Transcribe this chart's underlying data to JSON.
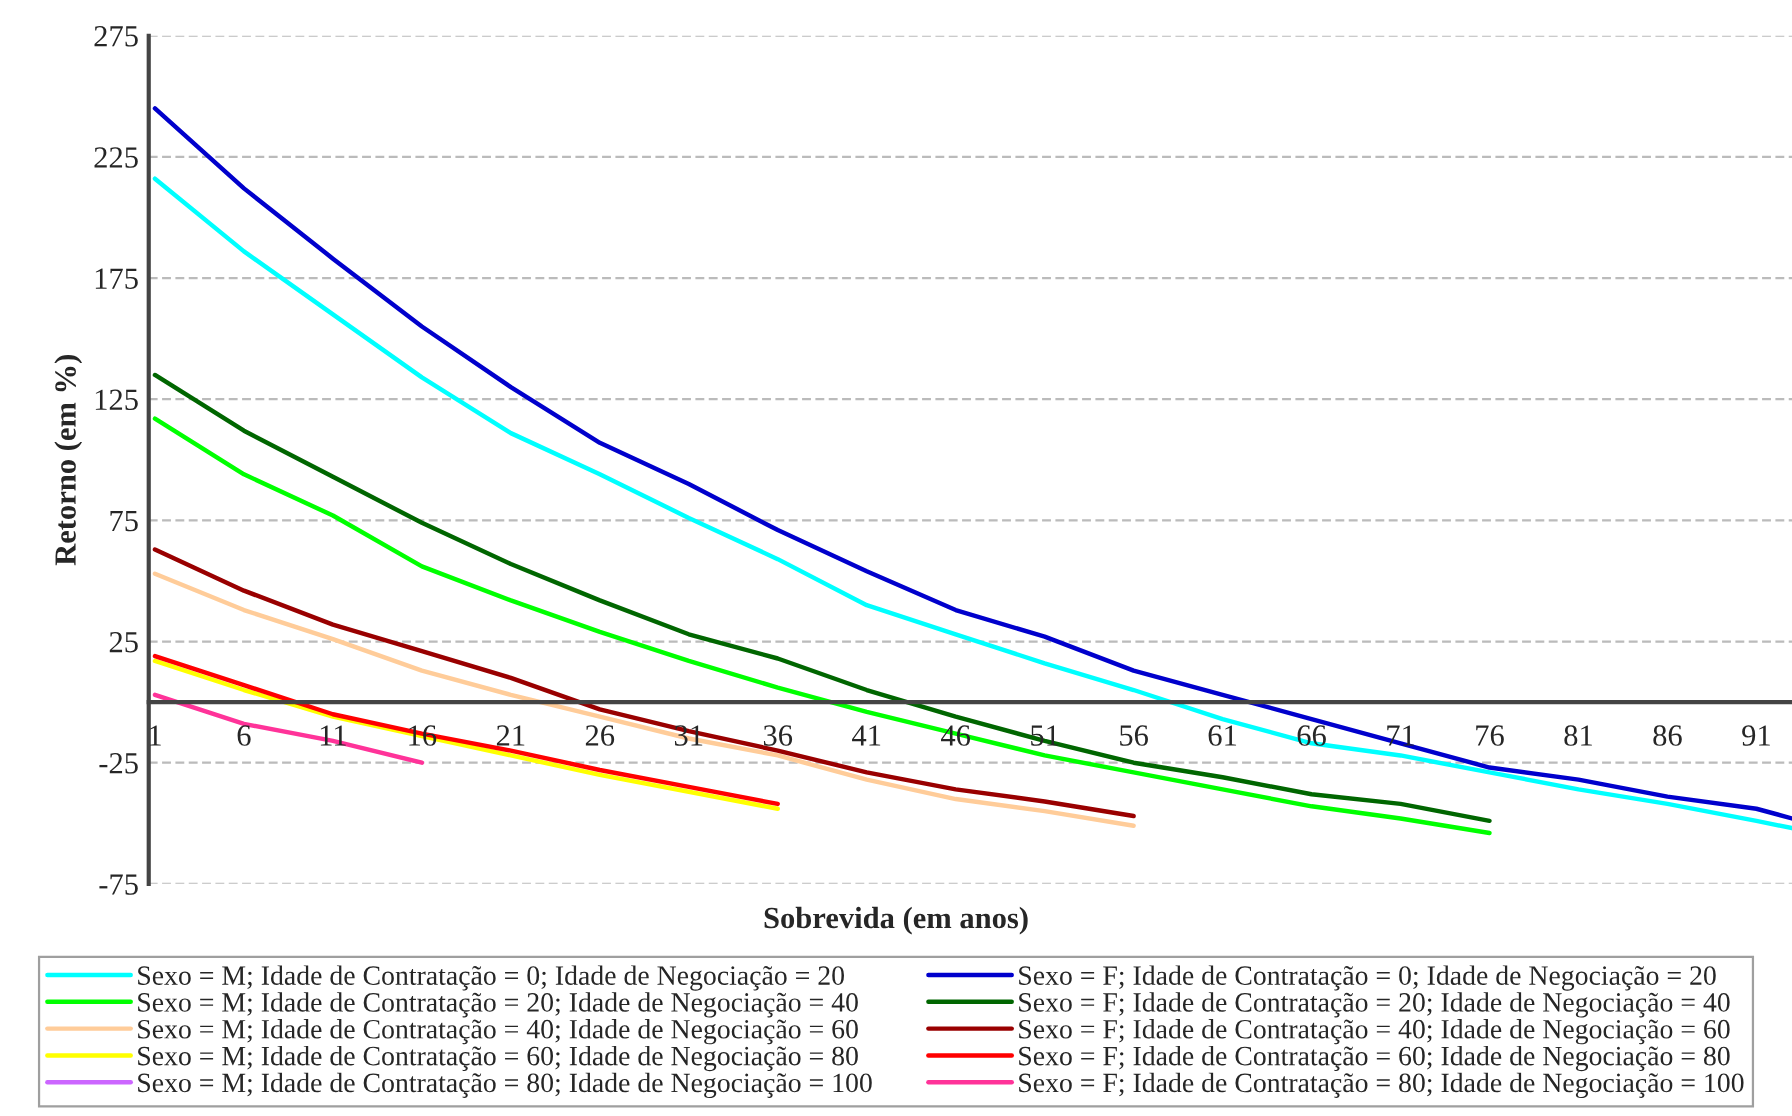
{
  "chart_data": {
    "type": "line",
    "xlabel": "Sobrevida (em anos)",
    "ylabel": "Retorno (em %)",
    "ylim": [
      -75,
      275
    ],
    "yticks": [
      -75,
      -25,
      25,
      75,
      125,
      175,
      225,
      275
    ],
    "xlim": [
      0.65,
      93.0
    ],
    "xticks": [
      1,
      6,
      11,
      16,
      21,
      26,
      31,
      36,
      41,
      46,
      51,
      56,
      61,
      66,
      71,
      76,
      81,
      86,
      91
    ],
    "grid": "y",
    "legend": "bottom",
    "marker": "none",
    "line_style": "solid",
    "series": [
      {
        "name": "Sexo = M; Idade de Contratação = 0; Idade de Negociação = 20",
        "color": "#00ffff",
        "x": [
          1,
          6,
          11,
          16,
          21,
          26,
          31,
          36,
          41,
          46,
          51,
          56,
          61,
          66,
          71,
          76,
          81,
          86,
          91,
          93
        ],
        "values": [
          216,
          186,
          160,
          134,
          111,
          94,
          76,
          59,
          40,
          28,
          16,
          5,
          -7,
          -17,
          -22,
          -29,
          -36,
          -42,
          -49,
          -52
        ]
      },
      {
        "name": "Sexo = F; Idade de Contratação = 0; Idade de Negociação = 20",
        "color": "#0000cc",
        "x": [
          1,
          6,
          11,
          16,
          21,
          26,
          31,
          36,
          41,
          46,
          51,
          56,
          61,
          66,
          71,
          76,
          81,
          86,
          91,
          93
        ],
        "values": [
          245,
          212,
          183,
          155,
          130,
          107,
          90,
          71,
          54,
          38,
          27,
          13,
          3,
          -7,
          -17,
          -27,
          -32,
          -39,
          -44,
          -48
        ]
      },
      {
        "name": "Sexo = M; Idade de Contratação = 20; Idade de Negociação = 40",
        "color": "#00ff00",
        "x": [
          1,
          6,
          11,
          16,
          21,
          26,
          31,
          36,
          41,
          46,
          51,
          56,
          61,
          66,
          71,
          76
        ],
        "values": [
          117,
          94,
          77,
          56,
          42,
          29,
          17,
          6,
          -4,
          -13,
          -22,
          -29,
          -36,
          -43,
          -48,
          -54
        ]
      },
      {
        "name": "Sexo = F; Idade de Contratação = 20; Idade de Negociação = 40",
        "color": "#006600",
        "x": [
          1,
          6,
          11,
          16,
          21,
          26,
          31,
          36,
          41,
          46,
          51,
          56,
          61,
          66,
          71,
          76
        ],
        "values": [
          135,
          112,
          93,
          74,
          57,
          42,
          28,
          18,
          5,
          -6,
          -16,
          -25,
          -31,
          -38,
          -42,
          -49
        ]
      },
      {
        "name": "Sexo = M; Idade de Contratação = 40; Idade de Negociação = 60",
        "color": "#ffcc99",
        "x": [
          1,
          6,
          11,
          16,
          21,
          26,
          31,
          36,
          41,
          46,
          51,
          56
        ],
        "values": [
          53,
          38,
          26,
          13,
          3,
          -6,
          -15,
          -22,
          -32,
          -40,
          -45,
          -51
        ]
      },
      {
        "name": "Sexo = F; Idade de Contratação = 40; Idade de Negociação = 60",
        "color": "#990000",
        "x": [
          1,
          6,
          11,
          16,
          21,
          26,
          31,
          36,
          41,
          46,
          51,
          56
        ],
        "values": [
          63,
          46,
          32,
          21,
          10,
          -3,
          -12,
          -20,
          -29,
          -36,
          -41,
          -47
        ]
      },
      {
        "name": "Sexo = M; Idade de Contratação = 60; Idade de Negociação = 80",
        "color": "#ffff00",
        "x": [
          1,
          6,
          11,
          16,
          21,
          26,
          31,
          36
        ],
        "values": [
          17,
          5,
          -6,
          -14,
          -22,
          -30,
          -37,
          -44
        ]
      },
      {
        "name": "Sexo = F; Idade de Contratação = 60; Idade de Negociação = 80",
        "color": "#ff0000",
        "x": [
          1,
          6,
          11,
          16,
          21,
          26,
          31,
          36
        ],
        "values": [
          19,
          7,
          -5,
          -13,
          -20,
          -28,
          -35,
          -42
        ]
      },
      {
        "name": "Sexo = M; Idade de Contratação = 80; Idade de Negociação = 100",
        "color": "#cc66ff",
        "values": [
          null,
          null,
          null,
          null
        ]
      },
      {
        "name": "Sexo = F; Idade de Contratação = 80; Idade de Negociação = 100",
        "color": "#ff3399",
        "x": [
          1,
          6,
          11,
          16
        ],
        "values": [
          3,
          -9,
          -16,
          -25
        ]
      }
    ]
  }
}
